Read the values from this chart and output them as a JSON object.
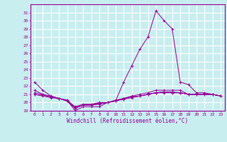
{
  "xlabel": "Windchill (Refroidissement éolien,°C)",
  "x": [
    0,
    1,
    2,
    3,
    4,
    5,
    6,
    7,
    8,
    9,
    10,
    11,
    12,
    13,
    14,
    15,
    16,
    17,
    18,
    19,
    20,
    21,
    22,
    23
  ],
  "line1": [
    22.5,
    21.5,
    20.8,
    20.5,
    20.3,
    19.0,
    19.5,
    19.5,
    19.5,
    20.0,
    20.2,
    22.5,
    24.5,
    26.5,
    28.0,
    31.2,
    30.0,
    29.0,
    22.5,
    22.2,
    21.2,
    21.2,
    21.0,
    20.8
  ],
  "line2": [
    21.5,
    21.0,
    20.8,
    20.5,
    20.2,
    19.3,
    19.7,
    19.7,
    19.8,
    20.0,
    20.2,
    20.5,
    20.8,
    21.0,
    21.2,
    21.5,
    21.5,
    21.5,
    21.5,
    21.0,
    21.0,
    21.0,
    21.0,
    20.8
  ],
  "line3": [
    21.0,
    20.9,
    20.7,
    20.5,
    20.3,
    19.5,
    19.8,
    19.8,
    20.0,
    20.0,
    20.3,
    20.5,
    20.7,
    20.8,
    21.0,
    21.2,
    21.2,
    21.2,
    21.2,
    21.0,
    21.0,
    21.0,
    21.0,
    20.8
  ],
  "line4": [
    21.0,
    20.8,
    20.6,
    20.5,
    20.2,
    19.4,
    19.7,
    19.7,
    19.9,
    20.0,
    20.2,
    20.4,
    20.6,
    20.8,
    21.0,
    21.2,
    21.3,
    21.2,
    21.2,
    21.0,
    21.0,
    21.0,
    21.0,
    20.8
  ],
  "line5": [
    21.2,
    21.0,
    20.7,
    20.5,
    20.2,
    19.3,
    19.7,
    19.7,
    20.0,
    20.0,
    20.2,
    20.5,
    20.7,
    20.8,
    21.0,
    21.2,
    21.3,
    21.3,
    21.2,
    21.0,
    21.0,
    21.0,
    21.0,
    20.8
  ],
  "color": "#990099",
  "bg_color": "#c8eef0",
  "grid_color": "#ffffff",
  "ylim": [
    19,
    32
  ],
  "yticks": [
    19,
    20,
    21,
    22,
    23,
    24,
    25,
    26,
    27,
    28,
    29,
    30,
    31
  ]
}
